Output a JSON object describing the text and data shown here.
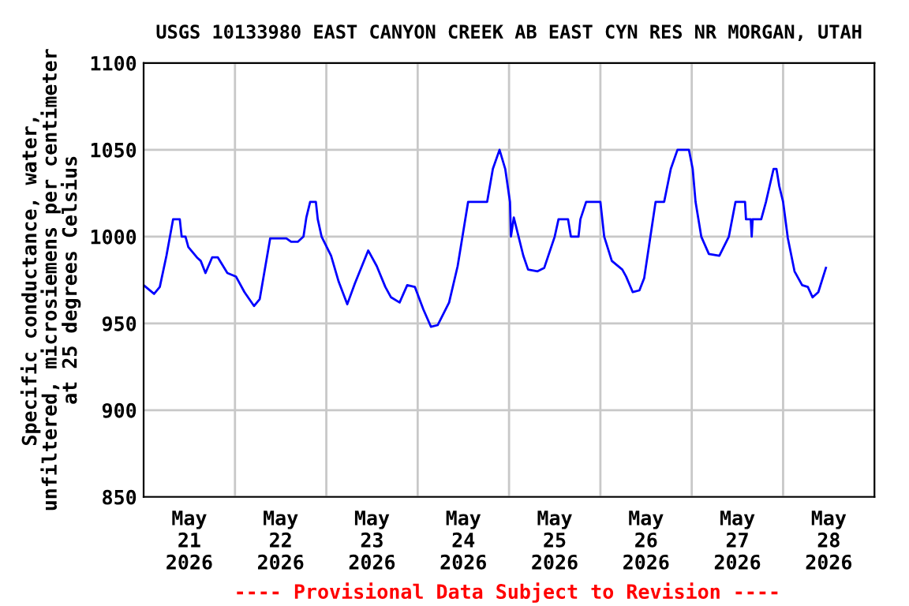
{
  "chart_data": {
    "type": "line",
    "title": "USGS 10133980 EAST CANYON CREEK AB EAST CYN RES NR MORGAN, UTAH",
    "ylabel": "Specific conductance, water,\nunfiltered, microsiemens per centimeter\nat 25 degrees Celsius",
    "annotations": [
      "---- Provisional Data Subject to Revision ----"
    ],
    "series": [
      {
        "color": "#0000ff",
        "x": [
          "2026-05-21T00:00",
          "2026-05-21T02:45",
          "2026-05-21T04:15",
          "2026-05-21T06:00",
          "2026-05-21T07:45",
          "2026-05-21T09:30",
          "2026-05-21T10:00",
          "2026-05-21T11:00",
          "2026-05-21T11:45",
          "2026-05-21T14:00",
          "2026-05-21T15:00",
          "2026-05-21T16:15",
          "2026-05-21T18:00",
          "2026-05-21T19:30",
          "2026-05-21T22:00",
          "2026-05-22T00:15",
          "2026-05-22T02:30",
          "2026-05-22T05:00",
          "2026-05-22T06:30",
          "2026-05-22T09:15",
          "2026-05-22T13:30",
          "2026-05-22T14:45",
          "2026-05-22T16:30",
          "2026-05-22T18:00",
          "2026-05-22T18:45",
          "2026-05-22T19:45",
          "2026-05-22T21:15",
          "2026-05-22T21:45",
          "2026-05-22T22:45",
          "2026-05-23T01:15",
          "2026-05-23T03:15",
          "2026-05-23T05:30",
          "2026-05-23T07:30",
          "2026-05-23T11:00",
          "2026-05-23T13:15",
          "2026-05-23T15:30",
          "2026-05-23T17:00",
          "2026-05-23T19:15",
          "2026-05-23T21:15",
          "2026-05-23T23:15",
          "2026-05-24T01:30",
          "2026-05-24T03:30",
          "2026-05-24T05:15",
          "2026-05-24T08:15",
          "2026-05-24T10:30",
          "2026-05-24T13:15",
          "2026-05-24T18:15",
          "2026-05-24T19:45",
          "2026-05-24T21:30",
          "2026-05-24T23:00",
          "2026-05-25T00:15",
          "2026-05-25T00:30",
          "2026-05-25T01:15",
          "2026-05-25T03:45",
          "2026-05-25T05:00",
          "2026-05-25T07:30",
          "2026-05-25T09:15",
          "2026-05-25T12:00",
          "2026-05-25T13:00",
          "2026-05-25T15:30",
          "2026-05-25T16:15",
          "2026-05-25T18:15",
          "2026-05-25T18:45",
          "2026-05-25T20:15",
          "2026-05-26T00:00",
          "2026-05-26T01:00",
          "2026-05-26T03:00",
          "2026-05-26T05:45",
          "2026-05-26T06:45",
          "2026-05-26T08:30",
          "2026-05-26T10:15",
          "2026-05-26T11:30",
          "2026-05-26T13:00",
          "2026-05-26T14:30",
          "2026-05-26T16:45",
          "2026-05-26T18:30",
          "2026-05-26T20:15",
          "2026-05-26T23:15",
          "2026-05-27T00:15",
          "2026-05-27T01:00",
          "2026-05-27T02:30",
          "2026-05-27T04:30",
          "2026-05-27T07:15",
          "2026-05-27T09:45",
          "2026-05-27T11:30",
          "2026-05-27T14:00",
          "2026-05-27T14:15",
          "2026-05-27T15:30",
          "2026-05-27T15:45",
          "2026-05-27T16:00",
          "2026-05-27T18:15",
          "2026-05-27T19:30",
          "2026-05-27T21:30",
          "2026-05-27T22:15",
          "2026-05-27T23:00",
          "2026-05-28T00:00",
          "2026-05-28T01:15",
          "2026-05-28T03:00",
          "2026-05-28T05:00",
          "2026-05-28T06:30",
          "2026-05-28T07:45",
          "2026-05-28T09:15",
          "2026-05-28T11:15"
        ],
        "values": [
          972,
          967,
          971,
          989,
          1010,
          1010,
          1000,
          1000,
          994,
          988,
          986,
          979,
          988,
          988,
          979,
          977,
          968,
          960,
          964,
          999,
          999,
          997,
          997,
          1000,
          1011,
          1020,
          1020,
          1010,
          1000,
          989,
          974,
          961,
          973,
          992,
          983,
          971,
          965,
          962,
          972,
          971,
          958,
          948,
          949,
          962,
          983,
          1020,
          1020,
          1039,
          1050,
          1039,
          1020,
          1000,
          1011,
          989,
          981,
          980,
          982,
          1000,
          1010,
          1010,
          1000,
          1000,
          1010,
          1020,
          1020,
          1000,
          986,
          981,
          977,
          968,
          969,
          976,
          998,
          1020,
          1020,
          1039,
          1050,
          1050,
          1039,
          1020,
          1000,
          990,
          989,
          1000,
          1020,
          1020,
          1010,
          1010,
          1000,
          1010,
          1010,
          1020,
          1039,
          1039,
          1029,
          1020,
          999,
          980,
          972,
          971,
          965,
          968,
          982
        ]
      }
    ],
    "xlim": [
      "2026-05-21T00:00",
      "2026-05-29T00:00"
    ],
    "xticks": [
      {
        "value": "2026-05-21T12:00",
        "label": "May\n21\n2026"
      },
      {
        "value": "2026-05-22T00:00",
        "label": null
      },
      {
        "value": "2026-05-22T12:00",
        "label": "May\n22\n2026"
      },
      {
        "value": "2026-05-23T00:00",
        "label": null
      },
      {
        "value": "2026-05-23T12:00",
        "label": "May\n23\n2026"
      },
      {
        "value": "2026-05-24T00:00",
        "label": null
      },
      {
        "value": "2026-05-24T12:00",
        "label": "May\n24\n2026"
      },
      {
        "value": "2026-05-25T00:00",
        "label": null
      },
      {
        "value": "2026-05-25T12:00",
        "label": "May\n25\n2026"
      },
      {
        "value": "2026-05-26T00:00",
        "label": null
      },
      {
        "value": "2026-05-26T12:00",
        "label": "May\n26\n2026"
      },
      {
        "value": "2026-05-27T00:00",
        "label": null
      },
      {
        "value": "2026-05-27T12:00",
        "label": "May\n27\n2026"
      },
      {
        "value": "2026-05-28T00:00",
        "label": null
      },
      {
        "value": "2026-05-28T12:00",
        "label": "May\n28\n2026"
      }
    ],
    "ylim": [
      850,
      1100
    ],
    "yticks": [
      850,
      900,
      950,
      1000,
      1050,
      1100
    ],
    "grid": true,
    "legend": false,
    "marker": "none",
    "line_style": "solid"
  }
}
